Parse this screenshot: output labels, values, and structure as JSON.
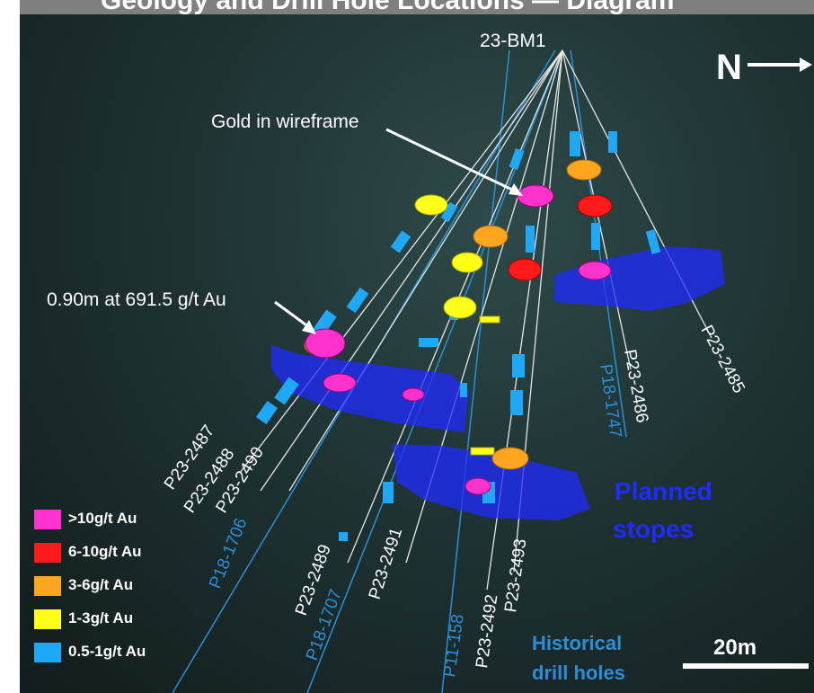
{
  "banner": {
    "title": "Geology and Drill Hole Locations — Diagram"
  },
  "collar": {
    "label": "23-BM1"
  },
  "north": {
    "label": "N",
    "icon": "arrow-right-icon"
  },
  "annotations": {
    "gold_wireframe": "Gold in wireframe",
    "intercept": "0.90m at 691.5 g/t Au",
    "planned_stopes": [
      "Planned",
      "stopes"
    ],
    "historical": [
      "Historical",
      "drill holes"
    ]
  },
  "scale": {
    "label": "20m"
  },
  "holes": [
    {
      "id": "P23-2487",
      "type": "current"
    },
    {
      "id": "P23-2488",
      "type": "current"
    },
    {
      "id": "P23-2490",
      "type": "current"
    },
    {
      "id": "P18-1706",
      "type": "historical"
    },
    {
      "id": "P23-2489",
      "type": "current"
    },
    {
      "id": "P18-1707",
      "type": "historical"
    },
    {
      "id": "P23-2491",
      "type": "current"
    },
    {
      "id": "P11-158",
      "type": "historical"
    },
    {
      "id": "P23-2492",
      "type": "current"
    },
    {
      "id": "P23-2493",
      "type": "current"
    },
    {
      "id": "P18-1747",
      "type": "historical"
    },
    {
      "id": "P23-2486",
      "type": "current"
    },
    {
      "id": "P23-2485",
      "type": "current"
    }
  ],
  "legend": [
    {
      "label": ">10g/t Au",
      "color": "#ff33cc"
    },
    {
      "label": "6-10g/t Au",
      "color": "#ff1a1a"
    },
    {
      "label": "3-6g/t Au",
      "color": "#ffa51f"
    },
    {
      "label": "1-3g/t Au",
      "color": "#ffff1a"
    },
    {
      "label": "0.5-1g/t Au",
      "color": "#1fa8f5"
    }
  ],
  "colors": {
    "background": "#1f3333",
    "historical_hole": "#2a8fd6",
    "current_hole": "#e6e6e6",
    "stope": "#1f2bff"
  }
}
